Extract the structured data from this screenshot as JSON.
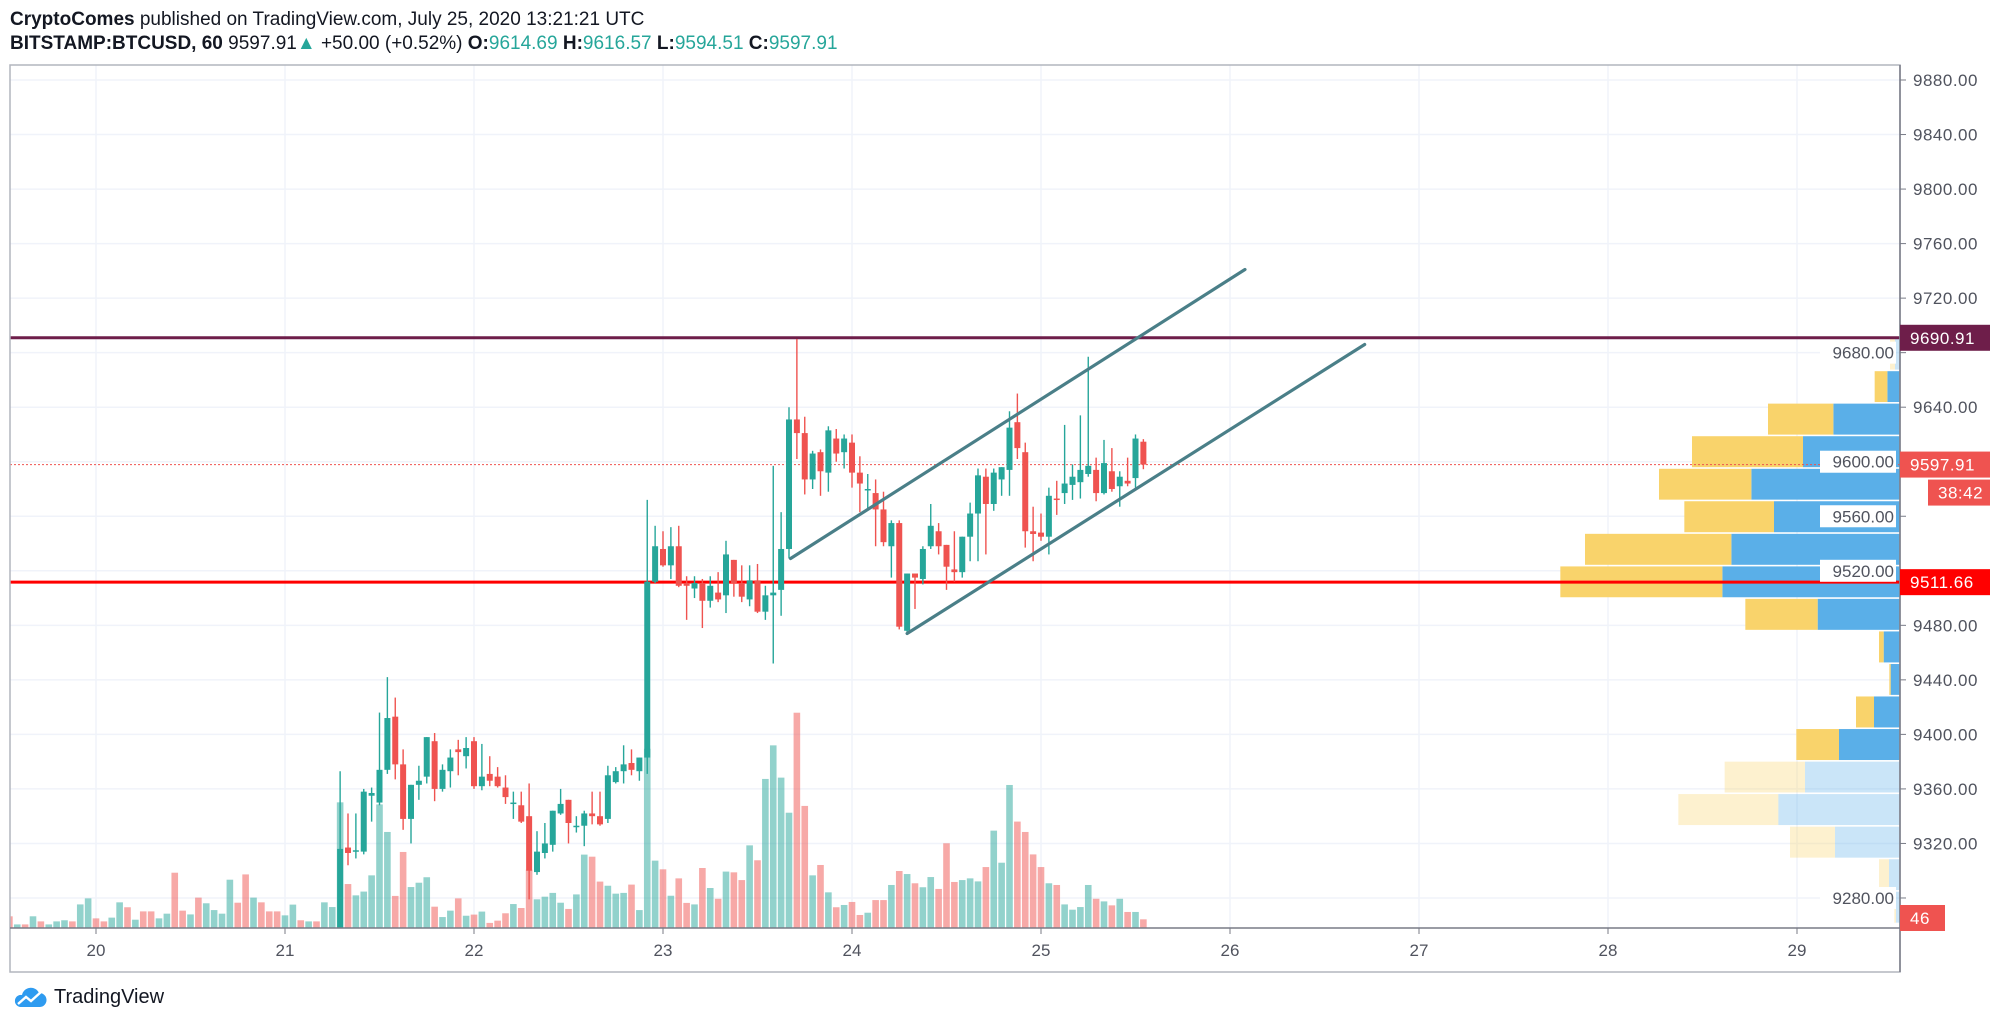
{
  "header": {
    "author": "CryptoComes",
    "published": "published on TradingView.com, July 25, 2020 13:21:21 UTC",
    "symbol": "BITSTAMP:BTCUSD, 60",
    "last": "9597.91",
    "direction_icon": "triangle-up-icon",
    "change": "+50.00 (+0.52%)",
    "o_label": "O:",
    "o": "9614.69",
    "h_label": "H:",
    "h": "9616.57",
    "l_label": "L:",
    "l": "9594.51",
    "c_label": "C:",
    "c": "9597.91"
  },
  "footer": {
    "logo_text": "TradingView",
    "logo_icon": "tradingview-cloud-icon"
  },
  "colors": {
    "up": "#26a69a",
    "down": "#ef5350",
    "profile_up": "#5aafe8",
    "profile_down": "#f9d36b",
    "resistance": "#6e1e4a",
    "support": "#ff0000",
    "channel": "#4a7f88",
    "last_price": "#ef5350"
  },
  "chart_data": {
    "type": "candlestick",
    "interval": "60",
    "yaxis": {
      "range": [
        9258,
        9895
      ],
      "ticks": [
        "9280.00",
        "9320.00",
        "9360.00",
        "9400.00",
        "9440.00",
        "9480.00",
        "9520.00",
        "9560.00",
        "9600.00",
        "9640.00",
        "9680.00",
        "9720.00",
        "9760.00",
        "9800.00",
        "9840.00",
        "9880.00"
      ]
    },
    "xaxis": {
      "ticks": [
        "20",
        "21",
        "22",
        "23",
        "24",
        "25",
        "26",
        "27",
        "28",
        "29"
      ]
    },
    "grid": true,
    "price_labels": {
      "resistance": "9690.91",
      "last": "9597.91",
      "countdown": "38:42",
      "support": "9511.66",
      "volume": "46"
    },
    "horizontal_lines": [
      {
        "role": "resistance",
        "price": 9690.91
      },
      {
        "role": "support",
        "price": 9511.66
      }
    ],
    "last_price": 9597.91,
    "channel": [
      {
        "from": [
          "23 16:12",
          9529
        ],
        "to": [
          "26 01:54",
          9741
        ]
      },
      {
        "from": [
          "24 07:00",
          9474
        ],
        "to": [
          "26 17:06",
          9686
        ]
      }
    ],
    "candles_columns": [
      "time",
      "open",
      "high",
      "low",
      "close",
      "volume"
    ],
    "candles": [
      [
        "21 07:00",
        9240,
        9373,
        9230,
        9316,
        666
      ],
      [
        "21 08:00",
        9317,
        9342,
        9304,
        9313,
        233
      ],
      [
        "21 09:00",
        9314,
        9342,
        9309,
        9315,
        173
      ],
      [
        "21 10:00",
        9314,
        9360,
        9312,
        9358,
        193
      ],
      [
        "21 11:00",
        9355,
        9361,
        9336,
        9357,
        279
      ],
      [
        "21 12:00",
        9350,
        9416,
        9348,
        9374,
        655
      ],
      [
        "21 13:00",
        9374,
        9442,
        9371,
        9412,
        509
      ],
      [
        "21 14:00",
        9413,
        9427,
        9367,
        9378,
        170
      ],
      [
        "21 15:00",
        9378,
        9389,
        9330,
        9338,
        403
      ],
      [
        "21 16:00",
        9338,
        9363,
        9320,
        9363,
        217
      ],
      [
        "21 17:00",
        9363,
        9377,
        9352,
        9366,
        240
      ],
      [
        "21 18:00",
        9369,
        9398,
        9364,
        9398,
        269
      ],
      [
        "21 19:00",
        9395,
        9401,
        9351,
        9360,
        113
      ],
      [
        "21 20:00",
        9360,
        9378,
        9358,
        9374,
        58
      ],
      [
        "21 21:00",
        9373,
        9389,
        9361,
        9383,
        92
      ],
      [
        "21 22:00",
        9389,
        9396,
        9370,
        9387,
        157
      ],
      [
        "21 23:00",
        9384,
        9398,
        9375,
        9390,
        65
      ],
      [
        "22 00:00",
        9395,
        9398,
        9360,
        9362,
        71
      ],
      [
        "22 01:00",
        9362,
        9393,
        9359,
        9369,
        87
      ],
      [
        "22 02:00",
        9371,
        9384,
        9362,
        9366,
        27
      ],
      [
        "22 03:00",
        9369,
        9376,
        9361,
        9362,
        39
      ],
      [
        "22 04:00",
        9361,
        9370,
        9349,
        9354,
        78
      ],
      [
        "22 05:00",
        9349,
        9358,
        9338,
        9350,
        127
      ],
      [
        "22 06:00",
        9348,
        9358,
        9335,
        9336,
        106
      ],
      [
        "22 07:00",
        9340,
        9364,
        9279,
        9300,
        309
      ],
      [
        "22 08:00",
        9299,
        9329,
        9297,
        9314,
        152
      ],
      [
        "22 09:00",
        9313,
        9335,
        9309,
        9320,
        166
      ],
      [
        "22 10:00",
        9319,
        9344,
        9314,
        9344,
        186
      ],
      [
        "22 11:00",
        9342,
        9360,
        9341,
        9349,
        134
      ],
      [
        "22 12:00",
        9352,
        9352,
        9320,
        9335,
        101
      ],
      [
        "22 13:00",
        9332,
        9340,
        9328,
        9333,
        178
      ],
      [
        "22 14:00",
        9333,
        9344,
        9318,
        9342,
        389
      ],
      [
        "22 15:00",
        9342,
        9358,
        9334,
        9340,
        378
      ],
      [
        "22 16:00",
        9340,
        9358,
        9333,
        9334,
        246
      ],
      [
        "22 17:00",
        9338,
        9377,
        9335,
        9370,
        224
      ],
      [
        "22 18:00",
        9365,
        9376,
        9364,
        9373,
        182
      ],
      [
        "22 19:00",
        9373,
        9392,
        9364,
        9378,
        186
      ],
      [
        "22 20:00",
        9379,
        9389,
        9370,
        9374,
        230
      ],
      [
        "22 21:00",
        9373,
        9383,
        9366,
        9383,
        95
      ],
      [
        "22 22:00",
        9383,
        9572,
        9371,
        9512,
        950
      ],
      [
        "22 23:00",
        9512,
        9553,
        9511,
        9538,
        357
      ],
      [
        "23 00:00",
        9536,
        9549,
        9523,
        9524,
        311
      ],
      [
        "23 01:00",
        9524,
        9552,
        9514,
        9538,
        171
      ],
      [
        "23 02:00",
        9538,
        9553,
        9508,
        9509,
        263
      ],
      [
        "23 03:00",
        9511,
        9516,
        9484,
        9509,
        133
      ],
      [
        "23 04:00",
        9507,
        9516,
        9500,
        9511,
        125
      ],
      [
        "23 05:00",
        9511,
        9514,
        9478,
        9498,
        318
      ],
      [
        "23 06:00",
        9498,
        9516,
        9493,
        9509,
        212
      ],
      [
        "23 07:00",
        9504,
        9519,
        9497,
        9499,
        155
      ],
      [
        "23 08:00",
        9502,
        9542,
        9489,
        9532,
        299
      ],
      [
        "23 09:00",
        9528,
        9528,
        9501,
        9511,
        295
      ],
      [
        "23 10:00",
        9511,
        9524,
        9497,
        9501,
        254
      ],
      [
        "23 11:00",
        9499,
        9524,
        9494,
        9513,
        438
      ],
      [
        "23 12:00",
        9513,
        9525,
        9489,
        9490,
        359
      ],
      [
        "23 13:00",
        9490,
        9509,
        9484,
        9502,
        790
      ],
      [
        "23 14:00",
        9502,
        9597,
        9452,
        9504,
        968
      ],
      [
        "23 15:00",
        9506,
        9563,
        9487,
        9536,
        797
      ],
      [
        "23 16:00",
        9536,
        9640,
        9529,
        9631,
        611
      ],
      [
        "23 17:00",
        9631,
        9690,
        9602,
        9621,
        1141
      ],
      [
        "23 18:00",
        9621,
        9633,
        9576,
        9587,
        647
      ],
      [
        "23 19:00",
        9587,
        9608,
        9580,
        9606,
        279
      ],
      [
        "23 20:00",
        9607,
        9609,
        9575,
        9593,
        334
      ],
      [
        "23 21:00",
        9592,
        9626,
        9578,
        9623,
        189
      ],
      [
        "23 22:00",
        9617,
        9624,
        9600,
        9606,
        110
      ],
      [
        "23 23:00",
        9607,
        9620,
        9595,
        9617,
        122
      ],
      [
        "24 00:00",
        9614,
        9620,
        9581,
        9592,
        138
      ],
      [
        "24 01:00",
        9592,
        9604,
        9563,
        9584,
        69
      ],
      [
        "24 02:00",
        9579,
        9591,
        9566,
        9580,
        81
      ],
      [
        "24 03:00",
        9577,
        9587,
        9538,
        9565,
        148
      ],
      [
        "24 04:00",
        9565,
        9578,
        9538,
        9541,
        148
      ],
      [
        "24 05:00",
        9538,
        9557,
        9515,
        9555,
        228
      ],
      [
        "24 06:00",
        9555,
        9557,
        9477,
        9479,
        302
      ],
      [
        "24 07:00",
        9476,
        9518,
        9474,
        9518,
        286
      ],
      [
        "24 08:00",
        9518,
        9518,
        9492,
        9515,
        237
      ],
      [
        "24 09:00",
        9514,
        9538,
        9510,
        9536,
        216
      ],
      [
        "24 10:00",
        9538,
        9569,
        9536,
        9553,
        270
      ],
      [
        "24 11:00",
        9549,
        9555,
        9532,
        9538,
        207
      ],
      [
        "24 12:00",
        9539,
        9539,
        9506,
        9523,
        449
      ],
      [
        "24 13:00",
        9521,
        9549,
        9512,
        9519,
        244
      ],
      [
        "24 14:00",
        9519,
        9545,
        9515,
        9545,
        254
      ],
      [
        "24 15:00",
        9545,
        9570,
        9527,
        9562,
        263
      ],
      [
        "24 16:00",
        9562,
        9595,
        9527,
        9590,
        247
      ],
      [
        "24 17:00",
        9589,
        9595,
        9532,
        9569,
        323
      ],
      [
        "24 18:00",
        9569,
        9595,
        9564,
        9592,
        516
      ],
      [
        "24 19:00",
        9587,
        9596,
        9575,
        9596,
        346
      ],
      [
        "24 20:00",
        9594,
        9637,
        9575,
        9625,
        758
      ],
      [
        "24 21:00",
        9629,
        9650,
        9602,
        9610,
        564
      ],
      [
        "24 22:00",
        9607,
        9614,
        9537,
        9549,
        509
      ],
      [
        "24 23:00",
        9549,
        9567,
        9527,
        9547,
        390
      ],
      [
        "25 00:00",
        9548,
        9562,
        9542,
        9545,
        323
      ],
      [
        "25 01:00",
        9545,
        9581,
        9532,
        9575,
        237
      ],
      [
        "25 02:00",
        9573,
        9586,
        9561,
        9572,
        228
      ],
      [
        "25 03:00",
        9577,
        9627,
        9569,
        9584,
        125
      ],
      [
        "25 04:00",
        9583,
        9598,
        9572,
        9589,
        97
      ],
      [
        "25 05:00",
        9585,
        9634,
        9573,
        9594,
        111
      ],
      [
        "25 06:00",
        9591,
        9677,
        9589,
        9597,
        228
      ],
      [
        "25 07:00",
        9594,
        9603,
        9571,
        9577,
        155
      ],
      [
        "25 08:00",
        9577,
        9616,
        9576,
        9599,
        141
      ],
      [
        "25 09:00",
        9593,
        9610,
        9578,
        9580,
        120
      ],
      [
        "25 10:00",
        9582,
        9593,
        9567,
        9589,
        155
      ],
      [
        "25 11:00",
        9586,
        9603,
        9582,
        9584,
        85
      ],
      [
        "25 12:00",
        9588,
        9620,
        9581,
        9617,
        85
      ],
      [
        "25 13:00",
        9614.69,
        9616.57,
        9594.51,
        9597.91,
        46
      ]
    ],
    "volume_below_range_columns": [
      "time",
      "volume",
      "direction"
    ],
    "volume_below_range": [
      [
        "19 13:00",
        62,
        "d"
      ],
      [
        "19 14:00",
        19,
        "u"
      ],
      [
        "19 15:00",
        19,
        "d"
      ],
      [
        "19 16:00",
        62,
        "u"
      ],
      [
        "19 17:00",
        35,
        "d"
      ],
      [
        "19 18:00",
        19,
        "u"
      ],
      [
        "19 19:00",
        35,
        "u"
      ],
      [
        "19 20:00",
        41,
        "u"
      ],
      [
        "19 21:00",
        35,
        "d"
      ],
      [
        "19 22:00",
        125,
        "u"
      ],
      [
        "19 23:00",
        157,
        "u"
      ],
      [
        "20 00:00",
        51,
        "d"
      ],
      [
        "20 01:00",
        35,
        "d"
      ],
      [
        "20 02:00",
        55,
        "u"
      ],
      [
        "20 03:00",
        136,
        "u"
      ],
      [
        "20 04:00",
        110,
        "d"
      ],
      [
        "20 05:00",
        44,
        "u"
      ],
      [
        "20 06:00",
        88,
        "d"
      ],
      [
        "20 07:00",
        88,
        "d"
      ],
      [
        "20 08:00",
        51,
        "u"
      ],
      [
        "20 09:00",
        76,
        "u"
      ],
      [
        "20 10:00",
        293,
        "d"
      ],
      [
        "20 11:00",
        92,
        "d"
      ],
      [
        "20 12:00",
        72,
        "u"
      ],
      [
        "20 13:00",
        161,
        "d"
      ],
      [
        "20 14:00",
        131,
        "u"
      ],
      [
        "20 15:00",
        95,
        "u"
      ],
      [
        "20 16:00",
        76,
        "u"
      ],
      [
        "20 17:00",
        256,
        "u"
      ],
      [
        "20 18:00",
        134,
        "d"
      ],
      [
        "20 19:00",
        284,
        "d"
      ],
      [
        "20 20:00",
        161,
        "u"
      ],
      [
        "20 21:00",
        136,
        "d"
      ],
      [
        "20 22:00",
        88,
        "d"
      ],
      [
        "20 23:00",
        88,
        "d"
      ],
      [
        "21 00:00",
        67,
        "u"
      ],
      [
        "21 01:00",
        124,
        "u"
      ],
      [
        "21 02:00",
        41,
        "d"
      ],
      [
        "21 03:00",
        35,
        "u"
      ],
      [
        "21 04:00",
        35,
        "d"
      ],
      [
        "21 05:00",
        136,
        "u"
      ],
      [
        "21 06:00",
        111,
        "u"
      ]
    ],
    "volume_profile_columns": [
      "price_high",
      "price_low",
      "up_volume",
      "down_volume",
      "in_value_area"
    ],
    "volume_profile": [
      [
        9690.9,
        9667.0,
        15,
        15,
        false
      ],
      [
        9667.0,
        9643.2,
        38,
        38,
        true
      ],
      [
        9643.2,
        9619.3,
        200,
        196,
        true
      ],
      [
        9619.3,
        9595.4,
        291,
        333,
        true
      ],
      [
        9595.4,
        9571.6,
        446,
        277,
        true
      ],
      [
        9571.6,
        9547.7,
        378,
        269,
        true
      ],
      [
        9547.7,
        9523.8,
        506,
        439,
        true
      ],
      [
        9523.8,
        9500.0,
        533,
        486,
        true
      ],
      [
        9500.0,
        9476.1,
        247,
        217,
        true
      ],
      [
        9476.1,
        9452.2,
        49,
        14,
        true
      ],
      [
        9452.2,
        9428.4,
        28,
        4,
        true
      ],
      [
        9428.4,
        9404.5,
        78,
        54,
        true
      ],
      [
        9404.5,
        9380.6,
        183,
        128,
        true
      ],
      [
        9380.6,
        9356.8,
        285,
        241,
        false
      ],
      [
        9356.8,
        9332.9,
        365,
        300,
        false
      ],
      [
        9332.9,
        9309.0,
        195,
        135,
        false
      ],
      [
        9309.0,
        9285.2,
        33,
        30,
        false
      ],
      [
        9285.2,
        9261.3,
        12,
        5,
        false
      ]
    ]
  }
}
